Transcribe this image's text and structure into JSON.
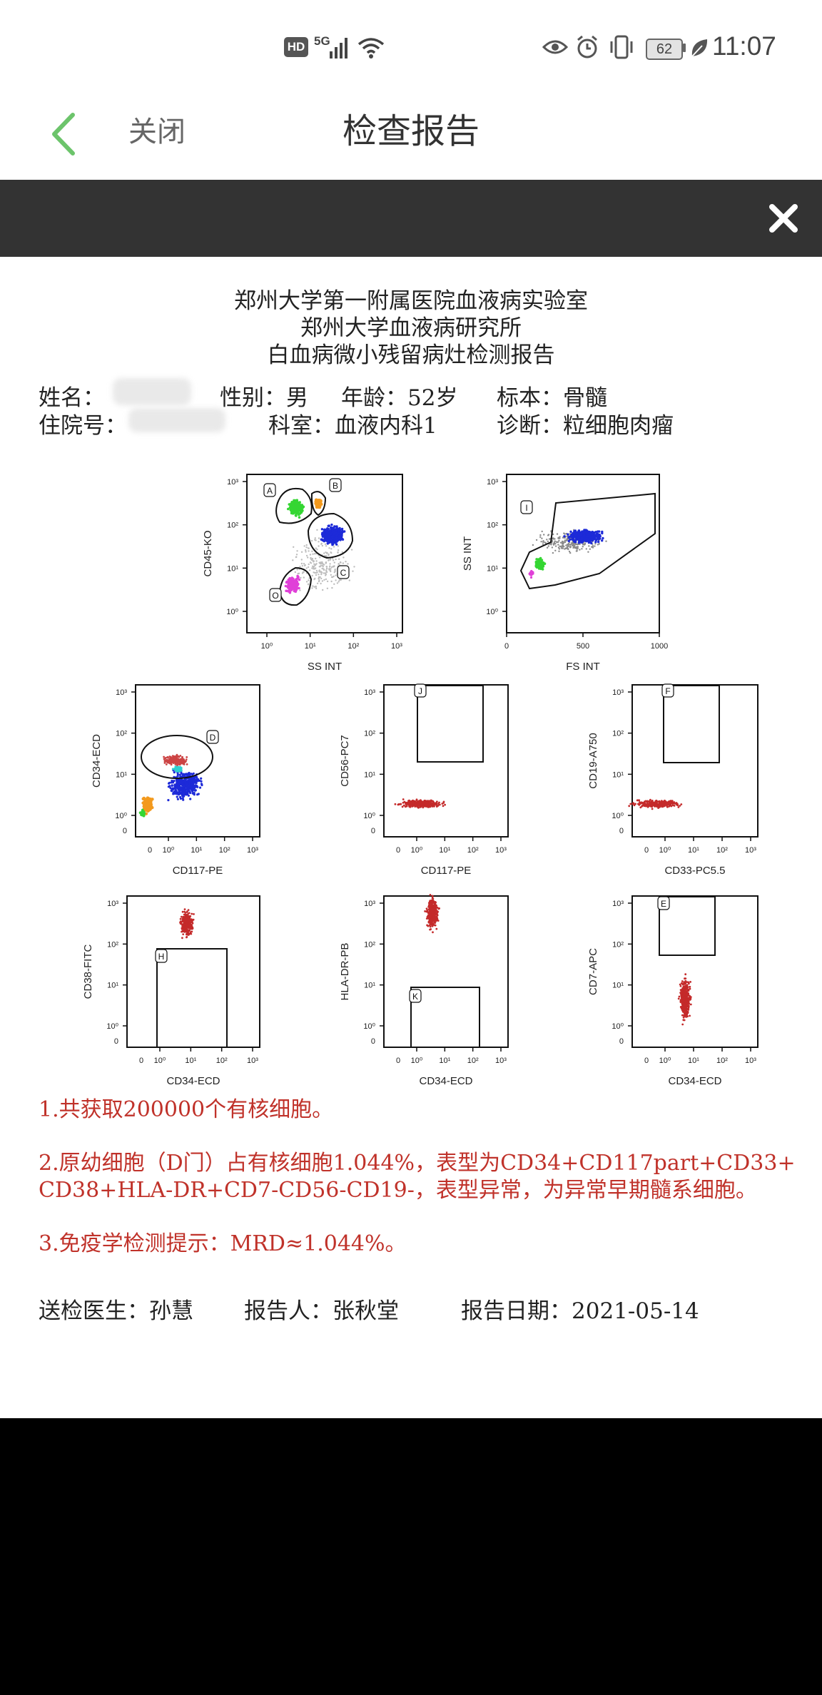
{
  "status_bar": {
    "hd": "HD",
    "network": "5G",
    "battery": "62",
    "time": "11:07",
    "icons": [
      "signal-icon",
      "wifi-icon",
      "eye-icon",
      "alarm-icon",
      "vibrate-icon",
      "leaf-icon"
    ]
  },
  "header": {
    "close_label": "关闭",
    "title": "检查报告"
  },
  "toolbar": {
    "close_icon": "close-icon"
  },
  "report": {
    "institution": "郑州大学第一附属医院血液病实验室",
    "institute": "郑州大学血液病研究所",
    "report_title": "白血病微小残留病灶检测报告",
    "name_label": "姓名：",
    "gender": "性别：男",
    "age": "年龄：52岁",
    "specimen": "标本：骨髓",
    "inpatient_label": "住院号：",
    "department": "科室：血液内科1",
    "diagnosis": "诊断：粒细胞肉瘤",
    "plots": [
      {
        "xlabel": "SS INT",
        "ylabel": "CD45-KO",
        "gates": [
          "A",
          "B",
          "C",
          "O"
        ]
      },
      {
        "xlabel": "FS INT",
        "ylabel": "SS INT",
        "gates": [
          "I"
        ]
      },
      {
        "xlabel": "CD117-PE",
        "ylabel": "CD34-ECD",
        "gates": [
          "D"
        ]
      },
      {
        "xlabel": "CD117-PE",
        "ylabel": "CD56-PC7",
        "gates": [
          "J"
        ]
      },
      {
        "xlabel": "CD33-PC5.5",
        "ylabel": "CD19-A750",
        "gates": [
          "F"
        ]
      },
      {
        "xlabel": "CD34-ECD",
        "ylabel": "CD38-FITC",
        "gates": [
          "H"
        ]
      },
      {
        "xlabel": "CD34-ECD",
        "ylabel": "HLA-DR-PB",
        "gates": [
          "K"
        ]
      },
      {
        "xlabel": "CD34-ECD",
        "ylabel": "CD7-APC",
        "gates": [
          "E"
        ]
      }
    ],
    "log_ticks": [
      "10⁰",
      "10¹",
      "10²",
      "10³"
    ],
    "lin_ticks": [
      "0",
      "500",
      "1000"
    ],
    "zero_tick": "0",
    "results": [
      "1.共获取200000个有核细胞。",
      "2.原幼细胞（D门）占有核细胞1.044%，表型为CD34+CD117part+CD33+",
      "CD38+HLA-DR+CD7-CD56-CD19-，表型异常，为异常早期髓系细胞。",
      "3.免疫学检测提示：MRD≈1.044%。"
    ],
    "doctor": "送检医生：孙慧",
    "reporter": "报告人：张秋堂",
    "report_date": "报告日期：2021-05-14"
  }
}
